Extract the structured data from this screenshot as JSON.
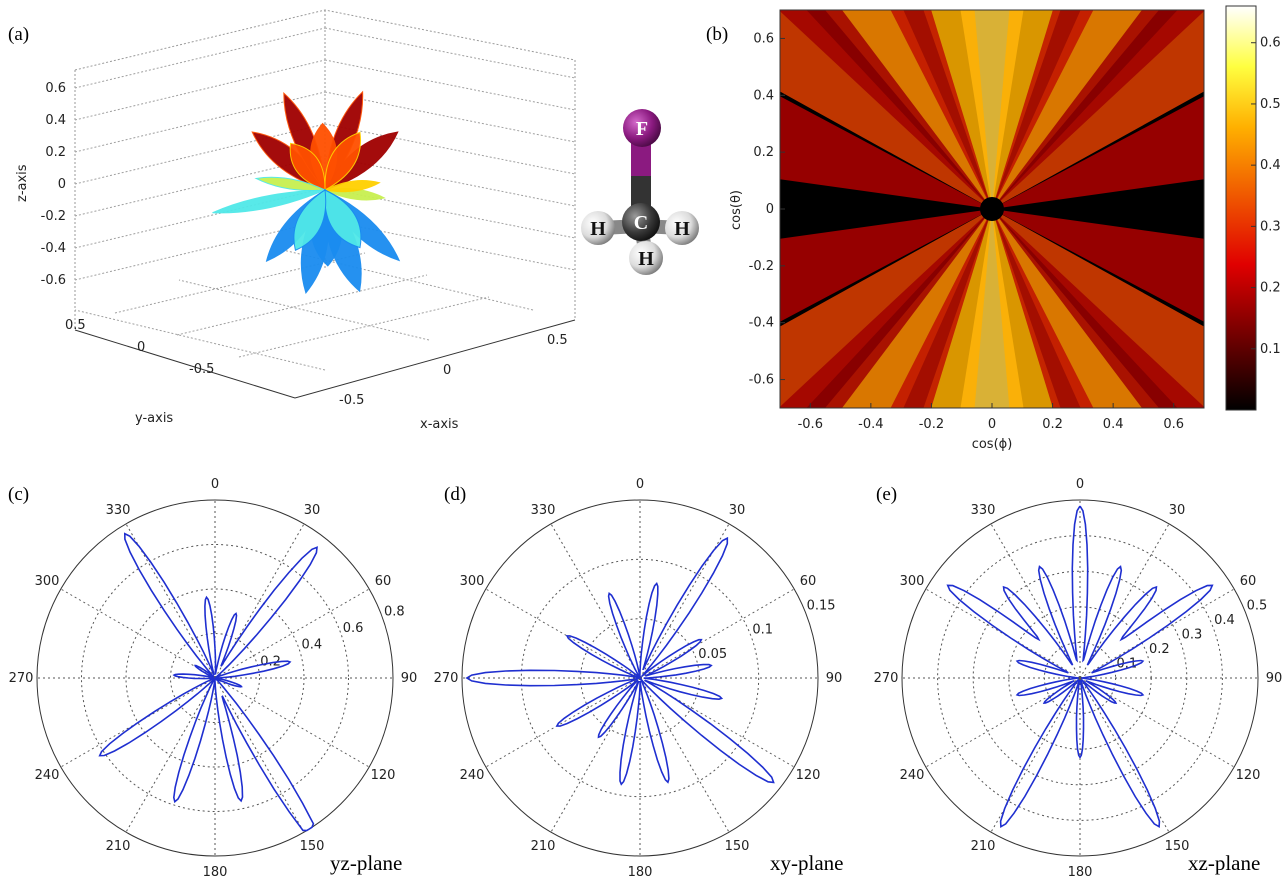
{
  "panels": {
    "a": "(a)",
    "b": "(b)",
    "c": "(c)",
    "d": "(d)",
    "e": "(e)"
  },
  "molecule": {
    "atoms": [
      "F",
      "C",
      "H",
      "H",
      "H"
    ],
    "colors": {
      "F": "#8b1a80",
      "C": "#3a3a3a",
      "H": "#e8e8e8",
      "bond_top": "#8b1a80"
    }
  },
  "colors": {
    "curve": "#1f2fd0",
    "grid": "#555555"
  },
  "chart_data": [
    {
      "id": "a",
      "type": "scatter",
      "subtype": "3d-surface",
      "xlabel": "x-axis",
      "ylabel": "y-axis",
      "zlabel": "z-axis",
      "x_ticks": [
        "-0.5",
        "0",
        "0.5"
      ],
      "y_ticks": [
        "-0.5",
        "0",
        "0.5"
      ],
      "z_ticks": [
        "0.6",
        "0.4",
        "0.2",
        "0",
        "-0.2",
        "-0.4",
        "-0.6"
      ],
      "xlim": [
        -0.7,
        0.7
      ],
      "ylim": [
        -0.7,
        0.7
      ],
      "zlim": [
        -0.7,
        0.7
      ],
      "colormap": "jet",
      "grid": true
    },
    {
      "id": "b",
      "type": "heatmap",
      "xlabel": "cos(ϕ)",
      "ylabel": "cos(θ)",
      "x_ticks": [
        "-0.6",
        "-0.4",
        "-0.2",
        "0",
        "0.2",
        "0.4",
        "0.6"
      ],
      "y_ticks": [
        "0.6",
        "0.4",
        "0.2",
        "0",
        "-0.2",
        "-0.4",
        "-0.6"
      ],
      "xlim": [
        -0.7,
        0.7
      ],
      "ylim": [
        -0.7,
        0.7
      ],
      "colorbar_ticks": [
        "0.6",
        "0.5",
        "0.4",
        "0.3",
        "0.2",
        "0.1"
      ],
      "clim": [
        0,
        0.66
      ],
      "colormap": "hot"
    },
    {
      "id": "c",
      "type": "line",
      "subtype": "polar",
      "plane": "yz-plane",
      "angle_labels": [
        "0",
        "30",
        "60",
        "90",
        "120",
        "150",
        "180",
        "210",
        "240",
        "270",
        "300",
        "330"
      ],
      "radial_ticks": [
        "0.2",
        "0.4",
        "0.6",
        "0.8"
      ],
      "rmax": 0.8,
      "lobes": [
        {
          "angle": 38,
          "r": 0.74
        },
        {
          "angle": 18,
          "r": 0.3
        },
        {
          "angle": 78,
          "r": 0.34
        },
        {
          "angle": 108,
          "r": 0.12
        },
        {
          "angle": 148,
          "r": 0.88
        },
        {
          "angle": 168,
          "r": 0.56
        },
        {
          "angle": 198,
          "r": 0.58
        },
        {
          "angle": 236,
          "r": 0.62
        },
        {
          "angle": 274,
          "r": 0.18
        },
        {
          "angle": 302,
          "r": 0.1
        },
        {
          "angle": 328,
          "r": 0.76
        },
        {
          "angle": 354,
          "r": 0.36
        }
      ]
    },
    {
      "id": "d",
      "type": "line",
      "subtype": "polar",
      "plane": "xy-plane",
      "angle_labels": [
        "0",
        "30",
        "60",
        "90",
        "120",
        "150",
        "180",
        "210",
        "240",
        "270",
        "300",
        "330"
      ],
      "radial_ticks": [
        "0.05",
        "0.1",
        "0.15"
      ],
      "rmax": 0.15,
      "lobes": [
        {
          "angle": 32,
          "r": 0.138
        },
        {
          "angle": 10,
          "r": 0.08
        },
        {
          "angle": 58,
          "r": 0.06
        },
        {
          "angle": 80,
          "r": 0.06
        },
        {
          "angle": 104,
          "r": 0.07
        },
        {
          "angle": 128,
          "r": 0.142
        },
        {
          "angle": 165,
          "r": 0.09
        },
        {
          "angle": 190,
          "r": 0.09
        },
        {
          "angle": 215,
          "r": 0.06
        },
        {
          "angle": 240,
          "r": 0.08
        },
        {
          "angle": 270,
          "r": 0.145
        },
        {
          "angle": 300,
          "r": 0.07
        },
        {
          "angle": 340,
          "r": 0.075
        }
      ]
    },
    {
      "id": "e",
      "type": "line",
      "subtype": "polar",
      "plane": "xz-plane",
      "angle_labels": [
        "0",
        "30",
        "60",
        "90",
        "120",
        "150",
        "180",
        "210",
        "240",
        "270",
        "300",
        "330"
      ],
      "radial_ticks": [
        "0.1",
        "0.2",
        "0.3",
        "0.4",
        "0.5"
      ],
      "rmax": 0.5,
      "lobes": [
        {
          "angle": 0,
          "r": 0.48
        },
        {
          "angle": 20,
          "r": 0.33
        },
        {
          "angle": 40,
          "r": 0.33
        },
        {
          "angle": 55,
          "r": 0.45
        },
        {
          "angle": 75,
          "r": 0.18
        },
        {
          "angle": 105,
          "r": 0.18
        },
        {
          "angle": 125,
          "r": 0.12
        },
        {
          "angle": 152,
          "r": 0.47
        },
        {
          "angle": 180,
          "r": 0.22
        },
        {
          "angle": 208,
          "r": 0.47
        },
        {
          "angle": 235,
          "r": 0.12
        },
        {
          "angle": 255,
          "r": 0.18
        },
        {
          "angle": 285,
          "r": 0.18
        },
        {
          "angle": 305,
          "r": 0.45
        },
        {
          "angle": 320,
          "r": 0.33
        },
        {
          "angle": 340,
          "r": 0.33
        }
      ]
    }
  ]
}
